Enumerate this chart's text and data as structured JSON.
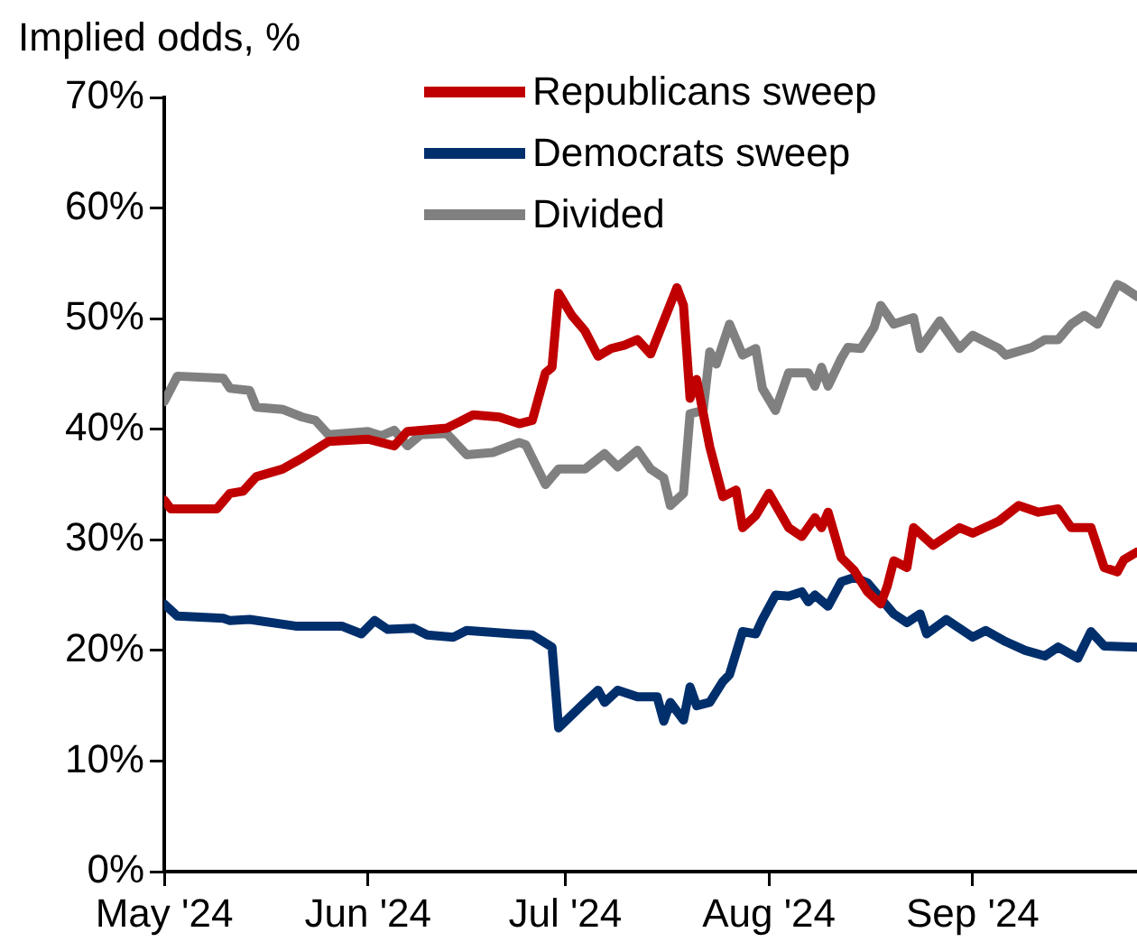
{
  "chart_data": {
    "type": "line",
    "ylabel": "Implied odds, %",
    "legend": "top",
    "grid": false,
    "marker": "none",
    "line_style": "solid",
    "xlim": [
      "2024-05-01",
      "2024-09-26"
    ],
    "xticks": [
      {
        "value": "2024-05-01",
        "label": "May '24"
      },
      {
        "value": "2024-06-01",
        "label": "Jun '24"
      },
      {
        "value": "2024-07-01",
        "label": "Jul '24"
      },
      {
        "value": "2024-08-01",
        "label": "Aug '24"
      },
      {
        "value": "2024-09-01",
        "label": "Sep '24"
      }
    ],
    "ylim": [
      0,
      70
    ],
    "yticks": [
      {
        "value": 0,
        "label": "0%"
      },
      {
        "value": 10,
        "label": "10%"
      },
      {
        "value": 20,
        "label": "20%"
      },
      {
        "value": 30,
        "label": "30%"
      },
      {
        "value": 40,
        "label": "40%"
      },
      {
        "value": 50,
        "label": "50%"
      },
      {
        "value": 60,
        "label": "60%"
      },
      {
        "value": 70,
        "label": "70%"
      }
    ],
    "series": [
      {
        "name": "Republicans sweep",
        "color": "#c00000",
        "x": [
          "2024-05-01",
          "2024-05-02",
          "2024-05-09",
          "2024-05-11",
          "2024-05-13",
          "2024-05-15",
          "2024-05-19",
          "2024-05-22",
          "2024-05-26",
          "2024-06-01",
          "2024-06-05",
          "2024-06-07",
          "2024-06-13",
          "2024-06-17",
          "2024-06-21",
          "2024-06-24",
          "2024-06-26",
          "2024-06-28",
          "2024-06-29",
          "2024-06-30",
          "2024-07-02",
          "2024-07-04",
          "2024-07-06",
          "2024-07-08",
          "2024-07-10",
          "2024-07-12",
          "2024-07-14",
          "2024-07-16",
          "2024-07-18",
          "2024-07-19",
          "2024-07-20",
          "2024-07-21",
          "2024-07-23",
          "2024-07-25",
          "2024-07-27",
          "2024-07-28",
          "2024-07-30",
          "2024-08-01",
          "2024-08-04",
          "2024-08-06",
          "2024-08-08",
          "2024-08-09",
          "2024-08-10",
          "2024-08-12",
          "2024-08-14",
          "2024-08-16",
          "2024-08-18",
          "2024-08-19",
          "2024-08-20",
          "2024-08-22",
          "2024-08-23",
          "2024-08-26",
          "2024-08-30",
          "2024-09-01",
          "2024-09-05",
          "2024-09-08",
          "2024-09-11",
          "2024-09-14",
          "2024-09-16",
          "2024-09-19",
          "2024-09-21",
          "2024-09-23",
          "2024-09-24",
          "2024-09-26"
        ],
        "values": [
          33.6,
          32.8,
          32.8,
          34.2,
          34.4,
          35.7,
          36.4,
          37.4,
          38.9,
          39.1,
          38.5,
          39.8,
          40.1,
          41.3,
          41.1,
          40.5,
          40.8,
          45.1,
          45.6,
          52.3,
          50.3,
          48.9,
          46.6,
          47.3,
          47.6,
          48.1,
          46.8,
          49.8,
          52.8,
          51.2,
          42.8,
          44.5,
          38.4,
          33.9,
          34.5,
          31.1,
          32.2,
          34.2,
          31.1,
          30.3,
          32.0,
          31.1,
          32.5,
          28.4,
          27.2,
          25.3,
          24.2,
          25.8,
          28.1,
          27.5,
          31.1,
          29.5,
          31.1,
          30.6,
          31.7,
          33.1,
          32.5,
          32.8,
          31.1,
          31.1,
          27.5,
          27.1,
          28.2,
          28.9
        ]
      },
      {
        "name": "Democrats sweep",
        "color": "#002f6c",
        "x": [
          "2024-05-01",
          "2024-05-03",
          "2024-05-10",
          "2024-05-11",
          "2024-05-14",
          "2024-05-21",
          "2024-05-28",
          "2024-05-31",
          "2024-06-02",
          "2024-06-04",
          "2024-06-08",
          "2024-06-10",
          "2024-06-14",
          "2024-06-16",
          "2024-06-23",
          "2024-06-26",
          "2024-06-29",
          "2024-06-30",
          "2024-07-04",
          "2024-07-06",
          "2024-07-07",
          "2024-07-09",
          "2024-07-12",
          "2024-07-15",
          "2024-07-16",
          "2024-07-17",
          "2024-07-19",
          "2024-07-20",
          "2024-07-21",
          "2024-07-23",
          "2024-07-25",
          "2024-07-26",
          "2024-07-28",
          "2024-07-30",
          "2024-07-31",
          "2024-08-02",
          "2024-08-04",
          "2024-08-06",
          "2024-08-07",
          "2024-08-08",
          "2024-08-10",
          "2024-08-12",
          "2024-08-14",
          "2024-08-16",
          "2024-08-20",
          "2024-08-22",
          "2024-08-24",
          "2024-08-25",
          "2024-08-28",
          "2024-09-01",
          "2024-09-03",
          "2024-09-06",
          "2024-09-09",
          "2024-09-12",
          "2024-09-14",
          "2024-09-17",
          "2024-09-19",
          "2024-09-21",
          "2024-09-26"
        ],
        "values": [
          24.2,
          23.1,
          22.9,
          22.7,
          22.8,
          22.2,
          22.2,
          21.5,
          22.7,
          21.9,
          22.0,
          21.4,
          21.2,
          21.8,
          21.5,
          21.4,
          20.3,
          13.0,
          15.3,
          16.4,
          15.3,
          16.4,
          15.8,
          15.8,
          13.6,
          15.3,
          13.7,
          16.7,
          15.0,
          15.3,
          17.2,
          17.8,
          21.7,
          21.5,
          22.8,
          25.0,
          24.9,
          25.3,
          24.4,
          25.0,
          24.0,
          26.2,
          26.6,
          26.1,
          23.3,
          22.5,
          23.3,
          21.5,
          22.8,
          21.2,
          21.8,
          20.8,
          20.0,
          19.5,
          20.3,
          19.3,
          21.7,
          20.4,
          20.3
        ]
      },
      {
        "name": "Divided",
        "color": "#808080",
        "x": [
          "2024-05-01",
          "2024-05-03",
          "2024-05-10",
          "2024-05-11",
          "2024-05-14",
          "2024-05-15",
          "2024-05-19",
          "2024-05-22",
          "2024-05-24",
          "2024-05-26",
          "2024-06-01",
          "2024-06-03",
          "2024-06-05",
          "2024-06-07",
          "2024-06-09",
          "2024-06-13",
          "2024-06-16",
          "2024-06-20",
          "2024-06-24",
          "2024-06-25",
          "2024-06-28",
          "2024-06-30",
          "2024-07-04",
          "2024-07-07",
          "2024-07-09",
          "2024-07-12",
          "2024-07-14",
          "2024-07-16",
          "2024-07-17",
          "2024-07-19",
          "2024-07-20",
          "2024-07-22",
          "2024-07-23",
          "2024-07-24",
          "2024-07-26",
          "2024-07-28",
          "2024-07-30",
          "2024-07-31",
          "2024-08-02",
          "2024-08-04",
          "2024-08-07",
          "2024-08-08",
          "2024-08-09",
          "2024-08-10",
          "2024-08-12",
          "2024-08-13",
          "2024-08-15",
          "2024-08-17",
          "2024-08-18",
          "2024-08-20",
          "2024-08-23",
          "2024-08-24",
          "2024-08-27",
          "2024-08-30",
          "2024-09-01",
          "2024-09-05",
          "2024-09-06",
          "2024-09-10",
          "2024-09-12",
          "2024-09-14",
          "2024-09-16",
          "2024-09-18",
          "2024-09-20",
          "2024-09-23",
          "2024-09-24",
          "2024-09-26"
        ],
        "values": [
          42.5,
          44.8,
          44.6,
          43.7,
          43.5,
          42.0,
          41.8,
          41.1,
          40.8,
          39.5,
          39.8,
          39.4,
          39.9,
          38.5,
          39.5,
          39.6,
          37.7,
          37.9,
          38.8,
          38.6,
          35.0,
          36.4,
          36.4,
          37.8,
          36.6,
          38.1,
          36.4,
          35.6,
          33.1,
          34.2,
          41.4,
          41.7,
          47.0,
          45.9,
          49.5,
          46.7,
          47.3,
          43.7,
          41.7,
          45.1,
          45.1,
          43.9,
          45.6,
          43.9,
          46.4,
          47.4,
          47.3,
          49.2,
          51.2,
          49.5,
          50.1,
          47.3,
          49.8,
          47.3,
          48.5,
          47.3,
          46.7,
          47.4,
          48.1,
          48.1,
          49.5,
          50.3,
          49.5,
          53.1,
          52.8,
          52.0
        ]
      }
    ]
  }
}
